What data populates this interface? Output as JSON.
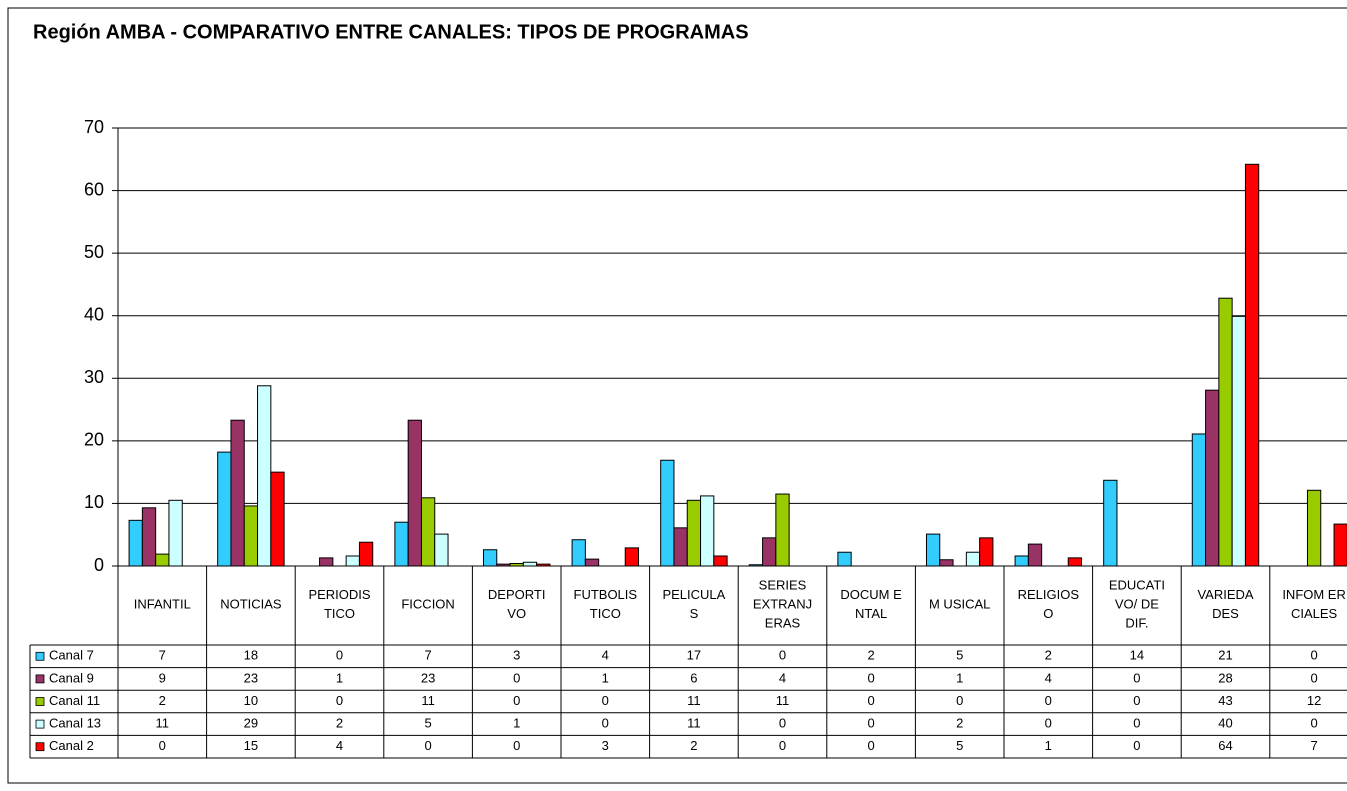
{
  "chart_data": {
    "type": "bar",
    "title": "Región AMBA - COMPARATIVO ENTRE CANALES: TIPOS DE PROGRAMAS",
    "categories": [
      "INFANTIL",
      "NOTICIAS",
      "PERIODIS\nTICO",
      "FICCION",
      "DEPORTI\nVO",
      "FUTBOLIS\nTICO",
      "PELICULA\nS",
      "SERIES\nEXTRANJ\nERAS",
      "DOCUM E\nNTAL",
      "M USICAL",
      "RELIGIOS\nO",
      "EDUCATI\nVO/ DE\nDIF.",
      "VARIEDA\nDES",
      "INFOM ER\nCIALES"
    ],
    "ylim": [
      0,
      70
    ],
    "yticks": [
      0,
      10,
      20,
      30,
      40,
      50,
      60,
      70
    ],
    "grid": true,
    "series": [
      {
        "name": "Canal 7",
        "color": "#33ccff",
        "values": [
          7.3,
          18.2,
          0,
          7.0,
          2.6,
          4.2,
          16.9,
          0.2,
          2.2,
          5.1,
          1.6,
          13.7,
          21.1,
          0
        ],
        "value_labels": [
          "7",
          "18",
          "0",
          "7",
          "3",
          "4",
          "17",
          "0",
          "2",
          "5",
          "2",
          "14",
          "21",
          "0"
        ]
      },
      {
        "name": "Canal 9",
        "color": "#993366",
        "values": [
          9.3,
          23.3,
          1.3,
          23.3,
          0.3,
          1.1,
          6.1,
          4.5,
          0,
          1.0,
          3.5,
          0,
          28.1,
          0
        ],
        "value_labels": [
          "9",
          "23",
          "1",
          "23",
          "0",
          "1",
          "6",
          "4",
          "0",
          "1",
          "4",
          "0",
          "28",
          "0"
        ]
      },
      {
        "name": "Canal 11",
        "color": "#99cc00",
        "values": [
          1.9,
          9.6,
          0,
          10.9,
          0.4,
          0,
          10.5,
          11.5,
          0,
          0,
          0,
          0,
          42.8,
          12.1
        ],
        "value_labels": [
          "2",
          "10",
          "0",
          "11",
          "0",
          "0",
          "11",
          "11",
          "0",
          "0",
          "0",
          "0",
          "43",
          "12"
        ]
      },
      {
        "name": "Canal 13",
        "color": "#ccffff",
        "values": [
          10.5,
          28.8,
          1.6,
          5.1,
          0.6,
          0,
          11.2,
          0,
          0,
          2.2,
          0,
          0,
          39.9,
          0
        ],
        "value_labels": [
          "11",
          "29",
          "2",
          "5",
          "1",
          "0",
          "11",
          "0",
          "0",
          "2",
          "0",
          "0",
          "40",
          "0"
        ]
      },
      {
        "name": "Canal 2",
        "color": "#ff0000",
        "values": [
          0,
          15.0,
          3.8,
          0,
          0.3,
          2.9,
          1.6,
          0,
          0,
          4.5,
          1.3,
          0,
          64.2,
          6.7
        ],
        "value_labels": [
          "0",
          "15",
          "4",
          "0",
          "0",
          "3",
          "2",
          "0",
          "0",
          "5",
          "1",
          "0",
          "64",
          "7"
        ]
      }
    ]
  }
}
